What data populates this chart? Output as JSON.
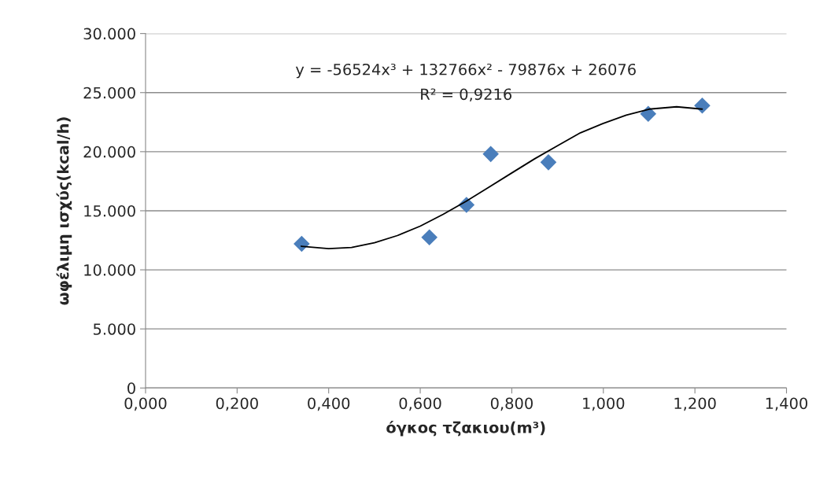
{
  "chart_data": {
    "type": "scatter",
    "xlabel": "όγκος τζακιου(m³)",
    "ylabel": "ωφέλιμη ισχύς(kcal/h)",
    "annotations": [
      "y = -56524x³ + 132766x² - 79876x + 26076",
      "R² = 0,9216"
    ],
    "series": [
      {
        "color": "#4a7ebb",
        "marker": "diamond",
        "x": [
          0.341,
          0.62,
          0.701,
          0.754,
          0.88,
          1.098,
          1.216
        ],
        "values": [
          12200,
          12750,
          15500,
          19800,
          19100,
          23200,
          23900
        ]
      },
      {
        "type": "line",
        "color": "#000000",
        "marker": "none",
        "line_style": "solid",
        "x": [
          0.34,
          0.4,
          0.45,
          0.5,
          0.55,
          0.6,
          0.65,
          0.7,
          0.75,
          0.8,
          0.85,
          0.9,
          0.95,
          1.0,
          1.05,
          1.1,
          1.16,
          1.216
        ],
        "values": [
          12000,
          11800,
          11900,
          12300,
          12900,
          13700,
          14700,
          15800,
          17000,
          18200,
          19400,
          20500,
          21600,
          22400,
          23100,
          23600,
          23800,
          23600
        ]
      }
    ],
    "xlim": [
      0,
      1.4
    ],
    "xticks": [
      {
        "value": 0,
        "label": "0,000"
      },
      {
        "value": 0.2,
        "label": "0,200"
      },
      {
        "value": 0.4,
        "label": "0,400"
      },
      {
        "value": 0.6,
        "label": "0,600"
      },
      {
        "value": 0.8,
        "label": "0,800"
      },
      {
        "value": 1.0,
        "label": "1,000"
      },
      {
        "value": 1.2,
        "label": "1,200"
      },
      {
        "value": 1.4,
        "label": "1,400"
      }
    ],
    "ylim": [
      0,
      30000
    ],
    "yticks": [
      0,
      {
        "value": 5000,
        "label": "5.000"
      },
      {
        "value": 10000,
        "label": "10.000"
      },
      {
        "value": 15000,
        "label": "15.000"
      },
      {
        "value": 20000,
        "label": "20.000"
      },
      {
        "value": 25000,
        "label": "25.000"
      },
      {
        "value": 30000,
        "label": "30.000"
      }
    ],
    "grid": "y",
    "legend": false
  }
}
